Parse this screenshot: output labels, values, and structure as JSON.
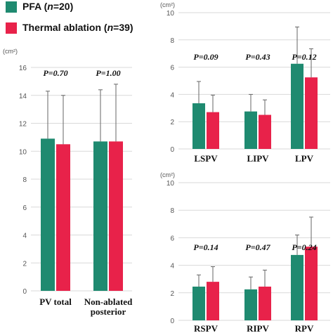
{
  "legend": [
    {
      "label_prefix": "PFA (",
      "label_n": "n",
      "label_suffix": "=20)",
      "color": "#1f8a70"
    },
    {
      "label_prefix": "Thermal ablation (",
      "label_n": "n",
      "label_suffix": "=39)",
      "color": "#e8224a"
    }
  ],
  "chart_data": [
    {
      "type": "bar",
      "unit": "(cm²)",
      "categories": [
        "PV total",
        "Non-ablated|posterior"
      ],
      "series": [
        {
          "name": "PFA",
          "values": [
            10.9,
            10.7
          ],
          "errors": [
            3.4,
            3.7
          ]
        },
        {
          "name": "Thermal ablation",
          "values": [
            10.5,
            10.7
          ],
          "errors": [
            3.5,
            4.1
          ]
        }
      ],
      "pvalues": [
        "P=0.70",
        "P=1.00"
      ],
      "ylim": [
        0,
        16
      ],
      "yticks": [
        0,
        2,
        4,
        6,
        8,
        10,
        12,
        14,
        16
      ]
    },
    {
      "type": "bar",
      "unit": "(cm²)",
      "categories": [
        "LSPV",
        "LIPV",
        "LPV"
      ],
      "series": [
        {
          "name": "PFA",
          "values": [
            3.35,
            2.75,
            6.25
          ],
          "errors": [
            1.6,
            1.25,
            2.7
          ]
        },
        {
          "name": "Thermal ablation",
          "values": [
            2.7,
            2.5,
            5.25
          ],
          "errors": [
            1.25,
            1.1,
            2.1
          ]
        }
      ],
      "pvalues": [
        "P=0.09",
        "P=0.43",
        "P=0.12"
      ],
      "ylim": [
        0,
        10
      ],
      "yticks": [
        0,
        2,
        4,
        6,
        8,
        10
      ]
    },
    {
      "type": "bar",
      "unit": "(cm²)",
      "categories": [
        "RSPV",
        "RIPV",
        "RPV"
      ],
      "series": [
        {
          "name": "PFA",
          "values": [
            2.45,
            2.25,
            4.75
          ],
          "errors": [
            0.85,
            0.9,
            1.45
          ]
        },
        {
          "name": "Thermal ablation",
          "values": [
            2.8,
            2.45,
            5.35
          ],
          "errors": [
            1.1,
            1.2,
            2.15
          ]
        }
      ],
      "pvalues": [
        "P=0.14",
        "P=0.47",
        "P=0.24"
      ],
      "ylim": [
        0,
        10
      ],
      "yticks": [
        0,
        2,
        4,
        6,
        8,
        10
      ]
    }
  ]
}
